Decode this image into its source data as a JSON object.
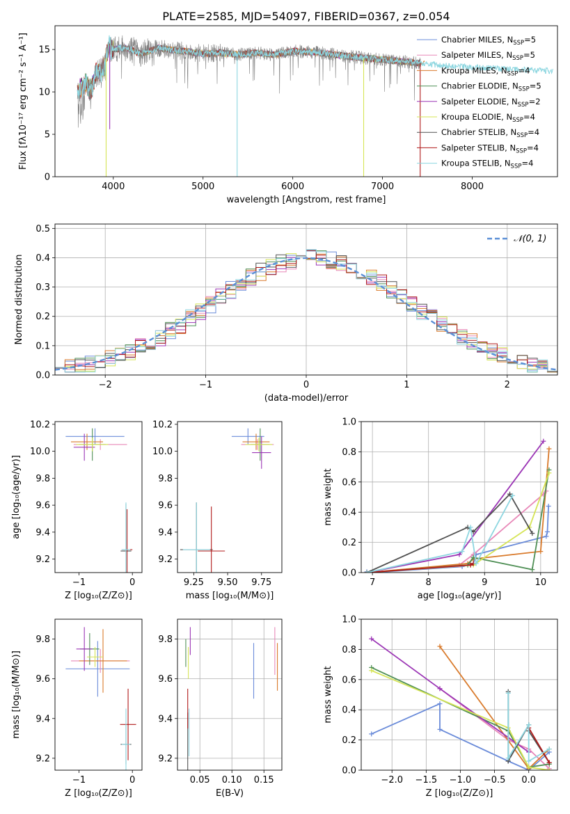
{
  "figure": {
    "title": "PLATE=2585, MJD=54097, FIBERID=0367, z=0.054"
  },
  "colors": {
    "data": "#808080",
    "models": [
      "#6a8bd9",
      "#e888b8",
      "#d97a2b",
      "#4f8f55",
      "#9b35b5",
      "#d5e455",
      "#505050",
      "#b01818",
      "#8dd6e0"
    ]
  },
  "chart_data": [
    {
      "type": "line",
      "panel": "spectrum",
      "xlabel": "wavelength [Angstrom, rest frame]",
      "ylabel": "Flux [fλ10⁻¹⁷ erg cm⁻² s⁻¹ A⁻¹]",
      "xlim": [
        3350,
        8950
      ],
      "ylim": [
        0,
        17.8
      ],
      "xticks": [
        4000,
        5000,
        6000,
        7000,
        8000
      ],
      "yticks": [
        0,
        5,
        10,
        15
      ],
      "legend_position": "top-right",
      "legend": [
        {
          "label": "Chabrier MILES, N",
          "sub": "SSP",
          "suffix": "=5"
        },
        {
          "label": "Salpeter MILES, N",
          "sub": "SSP",
          "suffix": "=5"
        },
        {
          "label": "Kroupa MILES, N",
          "sub": "SSP",
          "suffix": "=4"
        },
        {
          "label": "Chabrier ELODIE, N",
          "sub": "SSP",
          "suffix": "=5"
        },
        {
          "label": "Salpeter ELODIE, N",
          "sub": "SSP",
          "suffix": "=2"
        },
        {
          "label": "Kroupa ELODIE, N",
          "sub": "SSP",
          "suffix": "=4"
        },
        {
          "label": "Chabrier STELIB, N",
          "sub": "SSP",
          "suffix": "=4"
        },
        {
          "label": "Salpeter STELIB, N",
          "sub": "SSP",
          "suffix": "=4"
        },
        {
          "label": "Kroupa STELIB, N",
          "sub": "SSP",
          "suffix": "=4"
        }
      ],
      "continuum": {
        "x": [
          3600,
          3650,
          3700,
          3750,
          3800,
          3900,
          3950,
          4000,
          4100,
          4200,
          4300,
          4400,
          4500,
          4600,
          4800,
          5000,
          5200,
          5400,
          5600,
          5800,
          6000,
          6200,
          6400,
          6600,
          6800,
          7000,
          7200,
          7400,
          7600,
          7800,
          8000,
          8200,
          8400,
          8600,
          8800
        ],
        "y": [
          10.0,
          10.5,
          11.0,
          10.0,
          12.0,
          13.0,
          15.5,
          15.0,
          15.2,
          15.0,
          14.5,
          14.8,
          15.2,
          15.0,
          14.8,
          14.5,
          14.6,
          14.4,
          14.6,
          14.4,
          14.8,
          14.7,
          14.5,
          14.2,
          14.0,
          13.8,
          13.6,
          13.4,
          13.2,
          13.0,
          12.9,
          12.8,
          12.7,
          12.6,
          12.5
        ]
      },
      "model_ends": [
        7420,
        7420,
        7470,
        7420,
        7420,
        7420,
        7420,
        7420,
        7420
      ],
      "dips": [
        {
          "x": 3920,
          "y": 0,
          "series": 5
        },
        {
          "x": 3960,
          "y": 5.6,
          "series": 4
        },
        {
          "x": 5380,
          "y": 0,
          "series": 8
        },
        {
          "x": 6790,
          "y": 0,
          "series": 5
        },
        {
          "x": 7420,
          "y": 0,
          "series": 7
        }
      ]
    },
    {
      "type": "histogram",
      "panel": "residuals",
      "xlabel": "(data-model)/error",
      "ylabel": "Normed distribution",
      "xlim": [
        -2.5,
        2.5
      ],
      "ylim": [
        0,
        0.515
      ],
      "xticks": [
        -2,
        -1,
        0,
        1,
        2
      ],
      "xtick_labels": [
        "−2",
        "−1",
        "0",
        "1",
        "2"
      ],
      "yticks": [
        0.0,
        0.1,
        0.2,
        0.3,
        0.4,
        0.5
      ],
      "ytick_labels": [
        "0.0",
        "0.1",
        "0.2",
        "0.3",
        "0.4",
        "0.5"
      ],
      "grid": true,
      "legend_position": "top-right",
      "legend_label": "𝒩(0, 1)",
      "reference_curve": {
        "mean": 0,
        "sigma": 1
      },
      "bin_width": 0.1
    },
    {
      "type": "errorbar",
      "panel": "age-vs-Z",
      "xlabel": "Z [log₁₀(Z/Z⊙)]",
      "ylabel": "age  [log₁₀(age/yr)]",
      "xlim": [
        -1.45,
        0.18
      ],
      "ylim": [
        9.1,
        10.22
      ],
      "xticks": [
        -1,
        0
      ],
      "xtick_labels": [
        "−1",
        "0"
      ],
      "yticks": [
        9.2,
        9.4,
        9.6,
        9.8,
        10.0,
        10.2
      ],
      "points": [
        {
          "x": -0.7,
          "y": 10.11,
          "xerr": 0.55,
          "yerr": 0.06,
          "series": 0
        },
        {
          "x": -0.6,
          "y": 10.05,
          "xerr": 0.5,
          "yerr": 0.04,
          "series": 1
        },
        {
          "x": -0.85,
          "y": 10.07,
          "xerr": 0.3,
          "yerr": 0.06,
          "series": 2
        },
        {
          "x": -0.75,
          "y": 10.05,
          "xerr": 0.25,
          "yerr": 0.12,
          "series": 3
        },
        {
          "x": -0.9,
          "y": 10.03,
          "xerr": 0.2,
          "yerr": 0.1,
          "series": 4
        },
        {
          "x": -0.75,
          "y": 10.05,
          "xerr": 0.3,
          "yerr": 0.05,
          "series": 5
        },
        {
          "x": -0.12,
          "y": 9.26,
          "xerr": 0.1,
          "yerr": 0.35,
          "series": 6
        },
        {
          "x": -0.1,
          "y": 9.27,
          "xerr": 0.1,
          "yerr": 0.3,
          "series": 7
        },
        {
          "x": -0.12,
          "y": 9.27,
          "xerr": 0.08,
          "yerr": 0.35,
          "series": 8
        }
      ]
    },
    {
      "type": "errorbar",
      "panel": "age-vs-mass",
      "xlabel": "mass [log₁₀(M/M⊙)]",
      "ylabel": "",
      "xlim": [
        9.13,
        9.9
      ],
      "ylim": [
        9.1,
        10.22
      ],
      "xticks": [
        9.25,
        9.5,
        9.75
      ],
      "xtick_labels": [
        "9.25",
        "9.50",
        "9.75"
      ],
      "yticks": [
        9.2,
        9.4,
        9.6,
        9.8,
        10.0,
        10.2
      ],
      "points": [
        {
          "x": 9.65,
          "y": 10.11,
          "xerr": 0.12,
          "yerr": 0.06,
          "series": 0
        },
        {
          "x": 9.72,
          "y": 10.05,
          "xerr": 0.12,
          "yerr": 0.04,
          "series": 1
        },
        {
          "x": 9.71,
          "y": 10.07,
          "xerr": 0.1,
          "yerr": 0.06,
          "series": 2
        },
        {
          "x": 9.74,
          "y": 10.05,
          "xerr": 0.07,
          "yerr": 0.12,
          "series": 3
        },
        {
          "x": 9.75,
          "y": 9.99,
          "xerr": 0.07,
          "yerr": 0.12,
          "series": 4
        },
        {
          "x": 9.73,
          "y": 10.05,
          "xerr": 0.1,
          "yerr": 0.05,
          "series": 5
        },
        {
          "x": 9.27,
          "y": 9.27,
          "xerr": 0.12,
          "yerr": 0.35,
          "series": 6
        },
        {
          "x": 9.38,
          "y": 9.26,
          "xerr": 0.1,
          "yerr": 0.33,
          "series": 7
        },
        {
          "x": 9.27,
          "y": 9.27,
          "xerr": 0.1,
          "yerr": 0.35,
          "series": 8
        }
      ]
    },
    {
      "type": "line",
      "panel": "mass-weight-vs-age",
      "xlabel": "age  [log₁₀(age/yr)]",
      "ylabel": "mass weight",
      "xlim": [
        6.8,
        10.3
      ],
      "ylim": [
        0,
        1
      ],
      "xticks": [
        7,
        8,
        9,
        10
      ],
      "yticks": [
        0.0,
        0.2,
        0.4,
        0.6,
        0.8,
        1.0
      ],
      "grid": true,
      "series": [
        {
          "series": 0,
          "x": [
            6.9,
            7.0,
            8.6,
            8.8,
            8.85,
            10.1,
            10.12,
            10.14
          ],
          "y": [
            0.005,
            0.0,
            0.04,
            0.06,
            0.12,
            0.24,
            0.27,
            0.44
          ]
        },
        {
          "series": 1,
          "x": [
            6.9,
            8.55,
            8.8,
            10.05,
            10.1
          ],
          "y": [
            0.0,
            0.05,
            0.12,
            0.52,
            0.54
          ]
        },
        {
          "series": 2,
          "x": [
            6.9,
            8.7,
            8.8,
            10.0,
            10.15
          ],
          "y": [
            0.0,
            0.06,
            0.09,
            0.14,
            0.82
          ]
        },
        {
          "series": 3,
          "x": [
            6.9,
            8.7,
            8.8,
            9.85,
            10.15
          ],
          "y": [
            0.0,
            0.05,
            0.1,
            0.02,
            0.68
          ]
        },
        {
          "series": 4,
          "x": [
            6.9,
            8.55,
            10.05
          ],
          "y": [
            0.0,
            0.12,
            0.87
          ]
        },
        {
          "series": 5,
          "x": [
            6.9,
            8.8,
            9.8,
            10.15
          ],
          "y": [
            0.0,
            0.05,
            0.3,
            0.66
          ]
        },
        {
          "series": 6,
          "x": [
            6.9,
            8.7,
            8.8,
            9.45,
            9.85
          ],
          "y": [
            0.0,
            0.3,
            0.27,
            0.52,
            0.26
          ]
        },
        {
          "series": 7,
          "x": [
            6.9,
            8.75,
            8.8
          ],
          "y": [
            0.0,
            0.05,
            0.06
          ]
        },
        {
          "series": 8,
          "x": [
            6.9,
            8.6,
            8.75,
            8.85,
            9.5
          ],
          "y": [
            0.0,
            0.14,
            0.3,
            0.06,
            0.51
          ]
        }
      ]
    },
    {
      "type": "errorbar",
      "panel": "mass-vs-Z",
      "xlabel": "Z [log₁₀(Z/Z⊙)]",
      "ylabel": "mass [log₁₀(M/M⊙)]",
      "xlim": [
        -1.45,
        0.18
      ],
      "ylim": [
        9.14,
        9.9
      ],
      "xticks": [
        -1,
        0
      ],
      "xtick_labels": [
        "−1",
        "0"
      ],
      "yticks": [
        9.2,
        9.4,
        9.6,
        9.8
      ],
      "points": [
        {
          "x": -0.65,
          "y": 9.65,
          "xerr": 0.6,
          "yerr": 0.14,
          "series": 0
        },
        {
          "x": -0.6,
          "y": 9.69,
          "xerr": 0.55,
          "yerr": 0.06,
          "series": 1
        },
        {
          "x": -0.55,
          "y": 9.69,
          "xerr": 0.45,
          "yerr": 0.16,
          "series": 2
        },
        {
          "x": -0.8,
          "y": 9.75,
          "xerr": 0.18,
          "yerr": 0.08,
          "series": 3
        },
        {
          "x": -0.9,
          "y": 9.75,
          "xerr": 0.15,
          "yerr": 0.11,
          "series": 4
        },
        {
          "x": -0.7,
          "y": 9.71,
          "xerr": 0.15,
          "yerr": 0.05,
          "series": 5
        },
        {
          "x": -0.12,
          "y": 9.27,
          "xerr": 0.1,
          "yerr": 0.1,
          "series": 6
        },
        {
          "x": -0.08,
          "y": 9.37,
          "xerr": 0.15,
          "yerr": 0.18,
          "series": 7
        },
        {
          "x": -0.12,
          "y": 9.27,
          "xerr": 0.08,
          "yerr": 0.18,
          "series": 8
        }
      ]
    },
    {
      "type": "errorbar",
      "panel": "mass-vs-EBV",
      "xlabel": "E(B-V)",
      "ylabel": "",
      "xlim": [
        0.015,
        0.178
      ],
      "ylim": [
        9.14,
        9.9
      ],
      "xticks": [
        0.05,
        0.1,
        0.15
      ],
      "xtick_labels": [
        "0.05",
        "0.10",
        "0.15"
      ],
      "yticks": [
        9.2,
        9.4,
        9.6,
        9.8
      ],
      "grid": true,
      "points": [
        {
          "x": 0.134,
          "y": 9.64,
          "xerr": 0,
          "yerr": 0.14,
          "series": 0
        },
        {
          "x": 0.167,
          "y": 9.74,
          "xerr": 0,
          "yerr": 0.12,
          "series": 1
        },
        {
          "x": 0.171,
          "y": 9.66,
          "xerr": 0,
          "yerr": 0.12,
          "series": 2
        },
        {
          "x": 0.028,
          "y": 9.73,
          "xerr": 0,
          "yerr": 0.07,
          "series": 3
        },
        {
          "x": 0.035,
          "y": 9.79,
          "xerr": 0,
          "yerr": 0.07,
          "series": 4
        },
        {
          "x": 0.032,
          "y": 9.68,
          "xerr": 0,
          "yerr": 0.08,
          "series": 5
        },
        {
          "x": 0.031,
          "y": 9.27,
          "xerr": 0,
          "yerr": 0.16,
          "series": 6
        },
        {
          "x": 0.031,
          "y": 9.45,
          "xerr": 0,
          "yerr": 0.1,
          "series": 7
        },
        {
          "x": 0.033,
          "y": 9.33,
          "xerr": 0,
          "yerr": 0.12,
          "series": 8
        }
      ]
    },
    {
      "type": "line",
      "panel": "mass-weight-vs-Z",
      "xlabel": "Z [log₁₀(Z/Z⊙)]",
      "ylabel": "mass weight",
      "xlim": [
        -2.45,
        0.42
      ],
      "ylim": [
        0,
        1
      ],
      "xticks": [
        -2.0,
        -1.5,
        -1.0,
        -0.5,
        0.0
      ],
      "xtick_labels": [
        "−2.0",
        "−1.5",
        "−1.0",
        "−0.5",
        "0.0"
      ],
      "yticks": [
        0.0,
        0.2,
        0.4,
        0.6,
        0.8,
        1.0
      ],
      "grid": true,
      "series": [
        {
          "series": 0,
          "x": [
            -2.3,
            -1.3,
            -1.3,
            -0.3,
            0.0,
            0.3
          ],
          "y": [
            0.24,
            0.44,
            0.27,
            0.06,
            0.0,
            0.12
          ]
        },
        {
          "series": 1,
          "x": [
            -1.3,
            -0.3,
            0.0,
            0.3
          ],
          "y": [
            0.54,
            0.2,
            0.14,
            0.01
          ]
        },
        {
          "series": 2,
          "x": [
            -1.3,
            0.0,
            0.3
          ],
          "y": [
            0.82,
            0.01,
            0.14
          ]
        },
        {
          "series": 3,
          "x": [
            -2.3,
            -0.3,
            0.0,
            0.3
          ],
          "y": [
            0.68,
            0.26,
            0.02,
            0.04
          ]
        },
        {
          "series": 4,
          "x": [
            -2.3,
            -1.3,
            0.0
          ],
          "y": [
            0.87,
            0.54,
            0.12
          ]
        },
        {
          "series": 5,
          "x": [
            -2.3,
            -0.3,
            0.0,
            0.3
          ],
          "y": [
            0.66,
            0.28,
            0.02,
            0.0
          ]
        },
        {
          "series": 6,
          "x": [
            -0.3,
            -0.3,
            0.0,
            0.0,
            0.3
          ],
          "y": [
            0.52,
            0.06,
            0.3,
            0.26,
            0.05
          ]
        },
        {
          "series": 7,
          "x": [
            0.0,
            0.3
          ],
          "y": [
            0.28,
            0.05
          ]
        },
        {
          "series": 8,
          "x": [
            -0.3,
            -0.3,
            0.0,
            0.0,
            0.3
          ],
          "y": [
            0.51,
            0.08,
            0.3,
            0.06,
            0.14
          ]
        }
      ]
    }
  ]
}
